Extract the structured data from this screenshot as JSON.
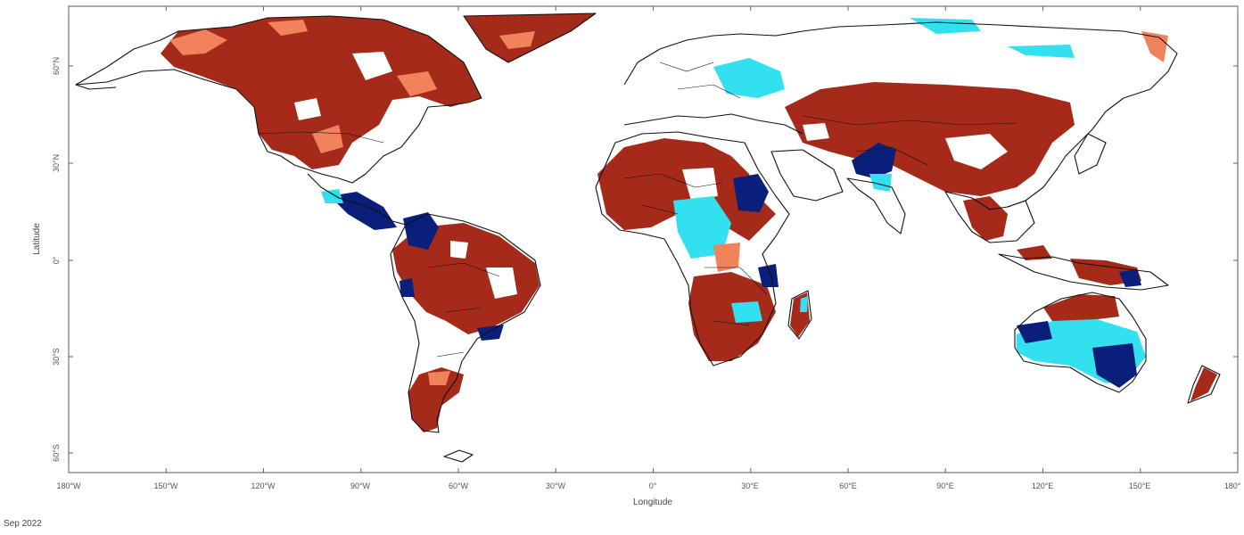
{
  "map": {
    "x_axis_title": "Longitude",
    "y_axis_title": "Latitude",
    "lon_tick_labels": [
      "180°W",
      "150°W",
      "120°W",
      "90°W",
      "60°W",
      "30°W",
      "0°",
      "30°E",
      "60°E",
      "90°E",
      "120°E",
      "150°E",
      "180°"
    ],
    "lat_tick_labels": [
      "60°N",
      "30°N",
      "0°",
      "30°S",
      "60°S"
    ],
    "date_label": "Sep 2022",
    "lon_range": [
      -180,
      180
    ],
    "lat_range": [
      -66,
      78
    ],
    "colors": {
      "dark_red": "#a52a1a",
      "light_red": "#f0825c",
      "cyan": "#33e0f0",
      "dark_blue": "#0a1f7a",
      "coastline": "#111111"
    }
  }
}
